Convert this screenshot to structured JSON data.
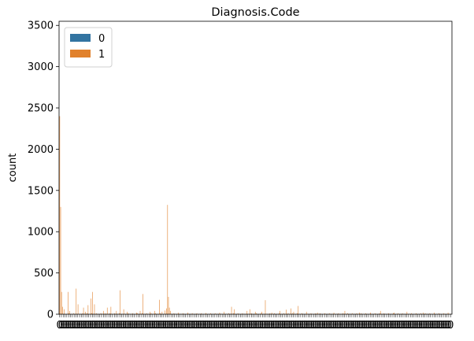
{
  "chart_data": {
    "type": "bar",
    "title": "Diagnosis.Code",
    "xlabel": "",
    "ylabel": "count",
    "ylim": [
      0,
      3550
    ],
    "yticks": [
      0,
      500,
      1000,
      1500,
      2000,
      2500,
      3000,
      3500
    ],
    "grid": false,
    "legend_position": "top-left",
    "n_categories": 430,
    "series": [
      {
        "name": "0",
        "color": "#3274a1",
        "spikes": []
      },
      {
        "name": "1",
        "color": "#e1812c",
        "spikes": [
          [
            0,
            2400
          ],
          [
            1,
            1300
          ],
          [
            2,
            270
          ],
          [
            3,
            90
          ],
          [
            5,
            60
          ],
          [
            9,
            270
          ],
          [
            11,
            40
          ],
          [
            18,
            310
          ],
          [
            20,
            120
          ],
          [
            26,
            80
          ],
          [
            28,
            30
          ],
          [
            31,
            110
          ],
          [
            34,
            190
          ],
          [
            36,
            270
          ],
          [
            38,
            120
          ],
          [
            48,
            40
          ],
          [
            52,
            80
          ],
          [
            56,
            90
          ],
          [
            62,
            40
          ],
          [
            66,
            290
          ],
          [
            70,
            60
          ],
          [
            74,
            30
          ],
          [
            84,
            20
          ],
          [
            88,
            40
          ],
          [
            91,
            245
          ],
          [
            99,
            30
          ],
          [
            104,
            40
          ],
          [
            109,
            175
          ],
          [
            112,
            30
          ],
          [
            115,
            45
          ],
          [
            117,
            70
          ],
          [
            118,
            1325
          ],
          [
            119,
            210
          ],
          [
            120,
            80
          ],
          [
            121,
            40
          ],
          [
            130,
            20
          ],
          [
            140,
            20
          ],
          [
            160,
            15
          ],
          [
            175,
            20
          ],
          [
            180,
            30
          ],
          [
            188,
            90
          ],
          [
            191,
            60
          ],
          [
            205,
            40
          ],
          [
            208,
            60
          ],
          [
            214,
            30
          ],
          [
            221,
            30
          ],
          [
            225,
            170
          ],
          [
            232,
            20
          ],
          [
            241,
            40
          ],
          [
            248,
            55
          ],
          [
            253,
            70
          ],
          [
            256,
            30
          ],
          [
            261,
            100
          ],
          [
            270,
            30
          ],
          [
            282,
            20
          ],
          [
            300,
            20
          ],
          [
            312,
            40
          ],
          [
            328,
            20
          ],
          [
            340,
            20
          ],
          [
            351,
            40
          ],
          [
            366,
            20
          ],
          [
            380,
            30
          ],
          [
            398,
            20
          ],
          [
            410,
            20
          ],
          [
            425,
            20
          ]
        ]
      }
    ]
  }
}
